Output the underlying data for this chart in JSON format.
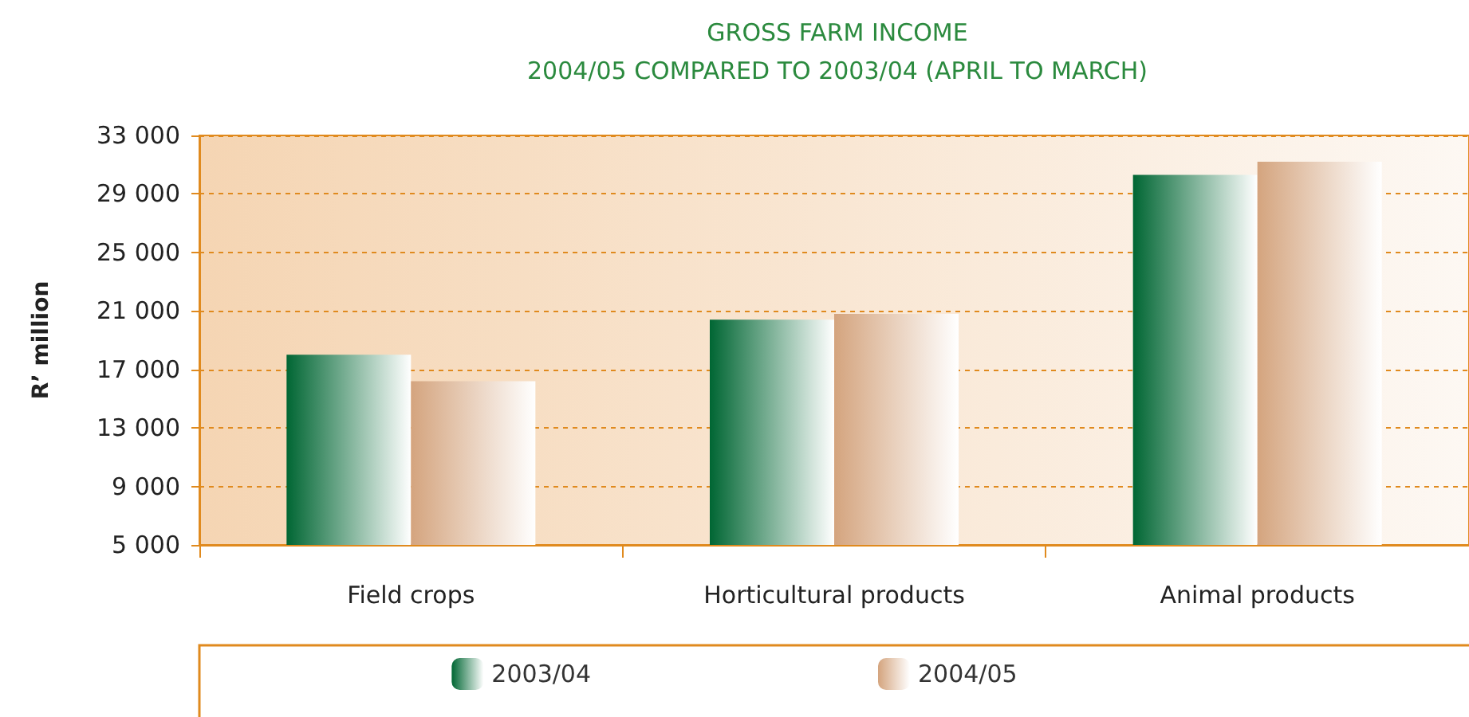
{
  "chart_data": {
    "type": "bar",
    "title": "GROSS FARM INCOME",
    "subtitle": "2004/05 COMPARED TO 2003/04 (APRIL TO MARCH)",
    "ylabel": "R’ million",
    "categories": [
      "Field crops",
      "Horticultural products",
      "Animal products"
    ],
    "series": [
      {
        "name": "2003/04",
        "color": "#006633",
        "values": [
          18000,
          20400,
          30300
        ]
      },
      {
        "name": "2004/05",
        "color": "#d4a47e",
        "values": [
          16200,
          20800,
          31200
        ]
      }
    ],
    "ylim": [
      5000,
      33000
    ],
    "yticks": [
      {
        "value": 5000,
        "label": "5 000"
      },
      {
        "value": 9000,
        "label": "9 000"
      },
      {
        "value": 13000,
        "label": "13 000"
      },
      {
        "value": 17000,
        "label": "17 000"
      },
      {
        "value": 21000,
        "label": "21 000"
      },
      {
        "value": 25000,
        "label": "25 000"
      },
      {
        "value": 29000,
        "label": "29 000"
      },
      {
        "value": 33000,
        "label": "33 000"
      }
    ],
    "grid": "y",
    "legend": "bottom"
  }
}
